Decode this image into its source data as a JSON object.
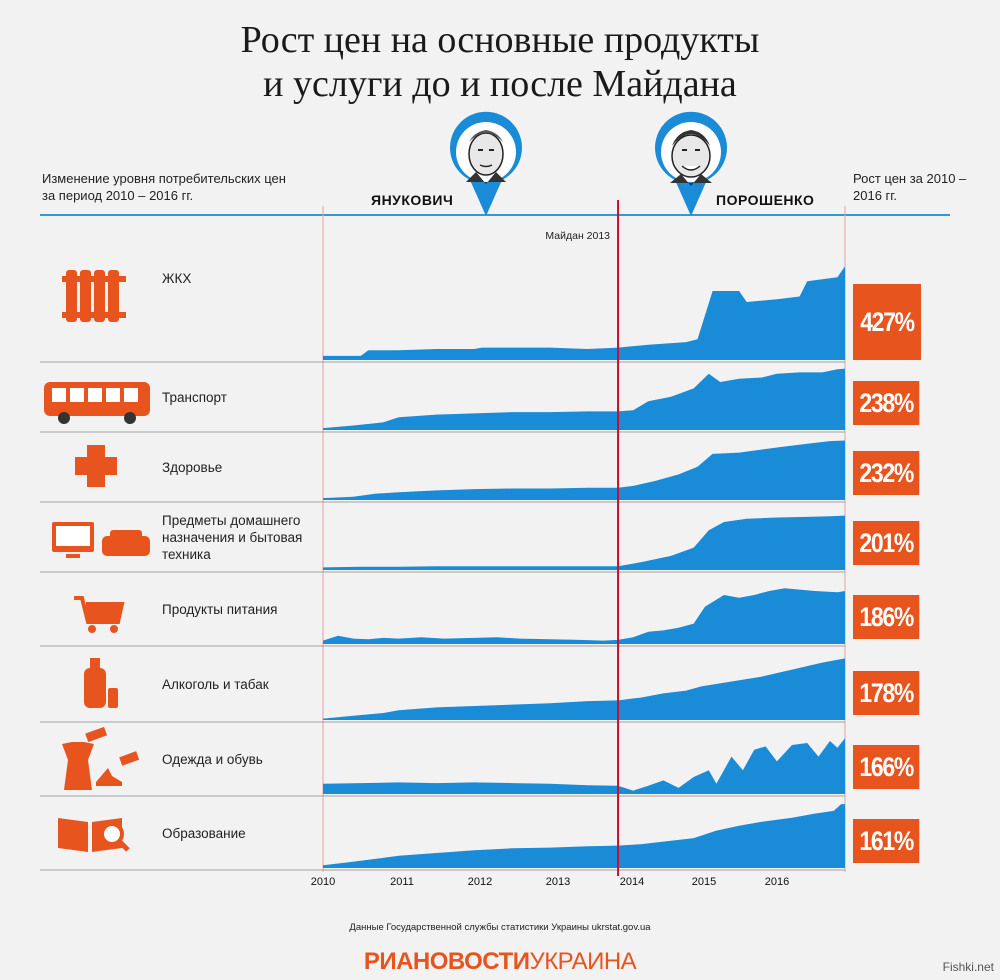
{
  "title_line1": "Рост цен на основные продукты",
  "title_line2": "и услуги до и после Майдана",
  "header_left": "Изменение уровня потребительских цен за период 2010 – 2016 гг.",
  "header_right": "Рост цен за 2010 – 2016 гг.",
  "politician_1": "ЯНУКОВИЧ",
  "politician_2": "ПОРОШЕНКО",
  "maidan_label": "Майдан 2013",
  "source": "Данные Государственной службы статистики Украины ukrstat.gov.ua",
  "logo_bold": "РИАНОВОСТИ",
  "logo_light": "УКРАИНА",
  "watermark": "Fishki.net",
  "colors": {
    "area": "#1a8bd6",
    "accent": "#e8541e",
    "maidan_line": "#c8102e",
    "grid_line": "#e8a0a0"
  },
  "chart_data": {
    "type": "area",
    "x_ticks": [
      "2010",
      "2011",
      "2012",
      "2013",
      "2014",
      "2015",
      "2016"
    ],
    "marker": {
      "label": "Майдан 2013",
      "x": 2013.9
    },
    "series": [
      {
        "name": "ЖКХ",
        "icon": "radiator-icon",
        "growth": "427%",
        "values": [
          [
            2010,
            0.03
          ],
          [
            2010.5,
            0.03
          ],
          [
            2010.6,
            0.07
          ],
          [
            2011,
            0.07
          ],
          [
            2011.5,
            0.08
          ],
          [
            2012,
            0.08
          ],
          [
            2012.1,
            0.09
          ],
          [
            2012.5,
            0.09
          ],
          [
            2013,
            0.09
          ],
          [
            2013.5,
            0.08
          ],
          [
            2013.9,
            0.09
          ],
          [
            2014.3,
            0.11
          ],
          [
            2014.8,
            0.13
          ],
          [
            2014.95,
            0.15
          ],
          [
            2015.15,
            0.5
          ],
          [
            2015.5,
            0.5
          ],
          [
            2015.6,
            0.42
          ],
          [
            2016,
            0.44
          ],
          [
            2016.3,
            0.46
          ],
          [
            2016.4,
            0.57
          ],
          [
            2016.8,
            0.6
          ],
          [
            2016.9,
            0.68
          ]
        ]
      },
      {
        "name": "Транспорт",
        "icon": "bus-icon",
        "growth": "238%",
        "values": [
          [
            2010,
            0.03
          ],
          [
            2010.4,
            0.07
          ],
          [
            2010.8,
            0.12
          ],
          [
            2011,
            0.2
          ],
          [
            2011.5,
            0.24
          ],
          [
            2012,
            0.26
          ],
          [
            2012.5,
            0.28
          ],
          [
            2013,
            0.28
          ],
          [
            2013.5,
            0.29
          ],
          [
            2013.9,
            0.29
          ],
          [
            2014.1,
            0.31
          ],
          [
            2014.3,
            0.45
          ],
          [
            2014.6,
            0.52
          ],
          [
            2014.9,
            0.65
          ],
          [
            2015.1,
            0.88
          ],
          [
            2015.25,
            0.75
          ],
          [
            2015.5,
            0.8
          ],
          [
            2015.8,
            0.82
          ],
          [
            2016,
            0.88
          ],
          [
            2016.3,
            0.9
          ],
          [
            2016.6,
            0.9
          ],
          [
            2016.8,
            0.95
          ],
          [
            2016.9,
            0.96
          ]
        ]
      },
      {
        "name": "Здоровье",
        "icon": "medical-cross-icon",
        "growth": "232%",
        "values": [
          [
            2010,
            0.03
          ],
          [
            2010.4,
            0.05
          ],
          [
            2010.7,
            0.1
          ],
          [
            2011,
            0.12
          ],
          [
            2011.5,
            0.15
          ],
          [
            2012,
            0.17
          ],
          [
            2012.5,
            0.18
          ],
          [
            2013,
            0.18
          ],
          [
            2013.5,
            0.19
          ],
          [
            2013.9,
            0.19
          ],
          [
            2014.1,
            0.22
          ],
          [
            2014.4,
            0.3
          ],
          [
            2014.7,
            0.4
          ],
          [
            2014.95,
            0.52
          ],
          [
            2015.15,
            0.72
          ],
          [
            2015.5,
            0.74
          ],
          [
            2016,
            0.82
          ],
          [
            2016.4,
            0.88
          ],
          [
            2016.7,
            0.92
          ],
          [
            2016.9,
            0.93
          ]
        ]
      },
      {
        "name": "Предметы домашнего назначения и бытовая техника",
        "icon": "tv-sofa-icon",
        "growth": "201%",
        "values": [
          [
            2010,
            0.04
          ],
          [
            2010.5,
            0.05
          ],
          [
            2011,
            0.05
          ],
          [
            2011.5,
            0.06
          ],
          [
            2012,
            0.06
          ],
          [
            2012.5,
            0.06
          ],
          [
            2013,
            0.06
          ],
          [
            2013.5,
            0.06
          ],
          [
            2013.9,
            0.06
          ],
          [
            2014.2,
            0.12
          ],
          [
            2014.6,
            0.22
          ],
          [
            2014.9,
            0.35
          ],
          [
            2015.1,
            0.62
          ],
          [
            2015.3,
            0.75
          ],
          [
            2015.6,
            0.8
          ],
          [
            2016,
            0.82
          ],
          [
            2016.4,
            0.83
          ],
          [
            2016.7,
            0.84
          ],
          [
            2016.9,
            0.85
          ]
        ]
      },
      {
        "name": "Продукты питания",
        "icon": "shopping-cart-icon",
        "growth": "186%",
        "values": [
          [
            2010,
            0.05
          ],
          [
            2010.2,
            0.12
          ],
          [
            2010.4,
            0.08
          ],
          [
            2010.6,
            0.07
          ],
          [
            2010.8,
            0.09
          ],
          [
            2011,
            0.08
          ],
          [
            2011.3,
            0.1
          ],
          [
            2011.6,
            0.08
          ],
          [
            2012,
            0.09
          ],
          [
            2012.3,
            0.1
          ],
          [
            2012.6,
            0.08
          ],
          [
            2013,
            0.07
          ],
          [
            2013.4,
            0.06
          ],
          [
            2013.7,
            0.05
          ],
          [
            2013.9,
            0.06
          ],
          [
            2014.1,
            0.1
          ],
          [
            2014.3,
            0.18
          ],
          [
            2014.5,
            0.2
          ],
          [
            2014.7,
            0.24
          ],
          [
            2014.9,
            0.3
          ],
          [
            2015.05,
            0.55
          ],
          [
            2015.3,
            0.72
          ],
          [
            2015.5,
            0.68
          ],
          [
            2015.7,
            0.72
          ],
          [
            2015.9,
            0.78
          ],
          [
            2016.1,
            0.82
          ],
          [
            2016.3,
            0.8
          ],
          [
            2016.5,
            0.78
          ],
          [
            2016.8,
            0.76
          ],
          [
            2016.9,
            0.78
          ]
        ]
      },
      {
        "name": "Алкоголь и табак",
        "icon": "bottle-icon",
        "growth": "178%",
        "values": [
          [
            2010,
            0.02
          ],
          [
            2010.4,
            0.06
          ],
          [
            2010.8,
            0.1
          ],
          [
            2011,
            0.14
          ],
          [
            2011.5,
            0.18
          ],
          [
            2012,
            0.2
          ],
          [
            2012.5,
            0.22
          ],
          [
            2013,
            0.24
          ],
          [
            2013.5,
            0.27
          ],
          [
            2013.9,
            0.28
          ],
          [
            2014.2,
            0.32
          ],
          [
            2014.5,
            0.38
          ],
          [
            2014.8,
            0.42
          ],
          [
            2015,
            0.48
          ],
          [
            2015.4,
            0.55
          ],
          [
            2015.8,
            0.62
          ],
          [
            2016.2,
            0.72
          ],
          [
            2016.6,
            0.82
          ],
          [
            2016.9,
            0.88
          ]
        ]
      },
      {
        "name": "Одежда и обувь",
        "icon": "clothes-icon",
        "growth": "166%",
        "values": [
          [
            2010,
            0.15
          ],
          [
            2010.5,
            0.16
          ],
          [
            2011,
            0.17
          ],
          [
            2011.5,
            0.16
          ],
          [
            2012,
            0.17
          ],
          [
            2012.5,
            0.16
          ],
          [
            2013,
            0.15
          ],
          [
            2013.5,
            0.13
          ],
          [
            2013.9,
            0.12
          ],
          [
            2014.1,
            0.05
          ],
          [
            2014.3,
            0.12
          ],
          [
            2014.5,
            0.2
          ],
          [
            2014.7,
            0.09
          ],
          [
            2014.9,
            0.25
          ],
          [
            2015.1,
            0.35
          ],
          [
            2015.2,
            0.15
          ],
          [
            2015.4,
            0.55
          ],
          [
            2015.55,
            0.35
          ],
          [
            2015.7,
            0.65
          ],
          [
            2015.85,
            0.7
          ],
          [
            2016,
            0.48
          ],
          [
            2016.2,
            0.72
          ],
          [
            2016.4,
            0.75
          ],
          [
            2016.55,
            0.55
          ],
          [
            2016.7,
            0.78
          ],
          [
            2016.8,
            0.68
          ],
          [
            2016.9,
            0.82
          ]
        ]
      },
      {
        "name": "Образование",
        "icon": "book-magnifier-icon",
        "growth": "161%",
        "values": [
          [
            2010,
            0.04
          ],
          [
            2010.3,
            0.08
          ],
          [
            2010.6,
            0.12
          ],
          [
            2011,
            0.18
          ],
          [
            2011.5,
            0.22
          ],
          [
            2012,
            0.26
          ],
          [
            2012.5,
            0.29
          ],
          [
            2013,
            0.3
          ],
          [
            2013.5,
            0.32
          ],
          [
            2013.9,
            0.33
          ],
          [
            2014.2,
            0.35
          ],
          [
            2014.6,
            0.4
          ],
          [
            2014.9,
            0.44
          ],
          [
            2015.2,
            0.55
          ],
          [
            2015.5,
            0.62
          ],
          [
            2015.8,
            0.68
          ],
          [
            2016.2,
            0.74
          ],
          [
            2016.5,
            0.8
          ],
          [
            2016.75,
            0.84
          ],
          [
            2016.85,
            0.94
          ],
          [
            2016.9,
            0.94
          ]
        ]
      }
    ]
  }
}
